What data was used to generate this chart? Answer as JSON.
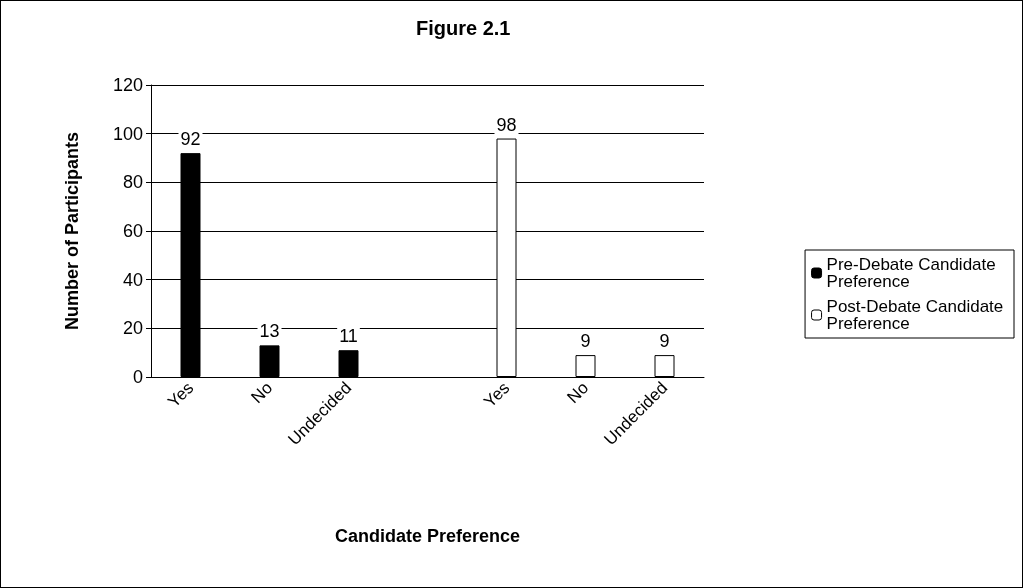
{
  "chart_data": {
    "type": "bar",
    "title": "Figure 2.1",
    "xlabel": "Candidate Preference",
    "ylabel": "Number of Participants",
    "categories": [
      "Yes",
      "No",
      "Undecided",
      null,
      "Yes",
      "No",
      "Undecided"
    ],
    "series": [
      {
        "name": "Pre-Debate Candidate Preference",
        "color": "#000000",
        "values": [
          92,
          13,
          11,
          null,
          null,
          null,
          null
        ]
      },
      {
        "name": "Post-Debate Candidate Preference",
        "color": "#ffffff",
        "values": [
          null,
          null,
          null,
          null,
          98,
          9,
          9
        ]
      }
    ],
    "ylim": [
      0,
      120
    ],
    "yticks": [
      0,
      20,
      40,
      60,
      80,
      100,
      120
    ],
    "grid": "y",
    "legend": "right",
    "data_labels": true
  }
}
